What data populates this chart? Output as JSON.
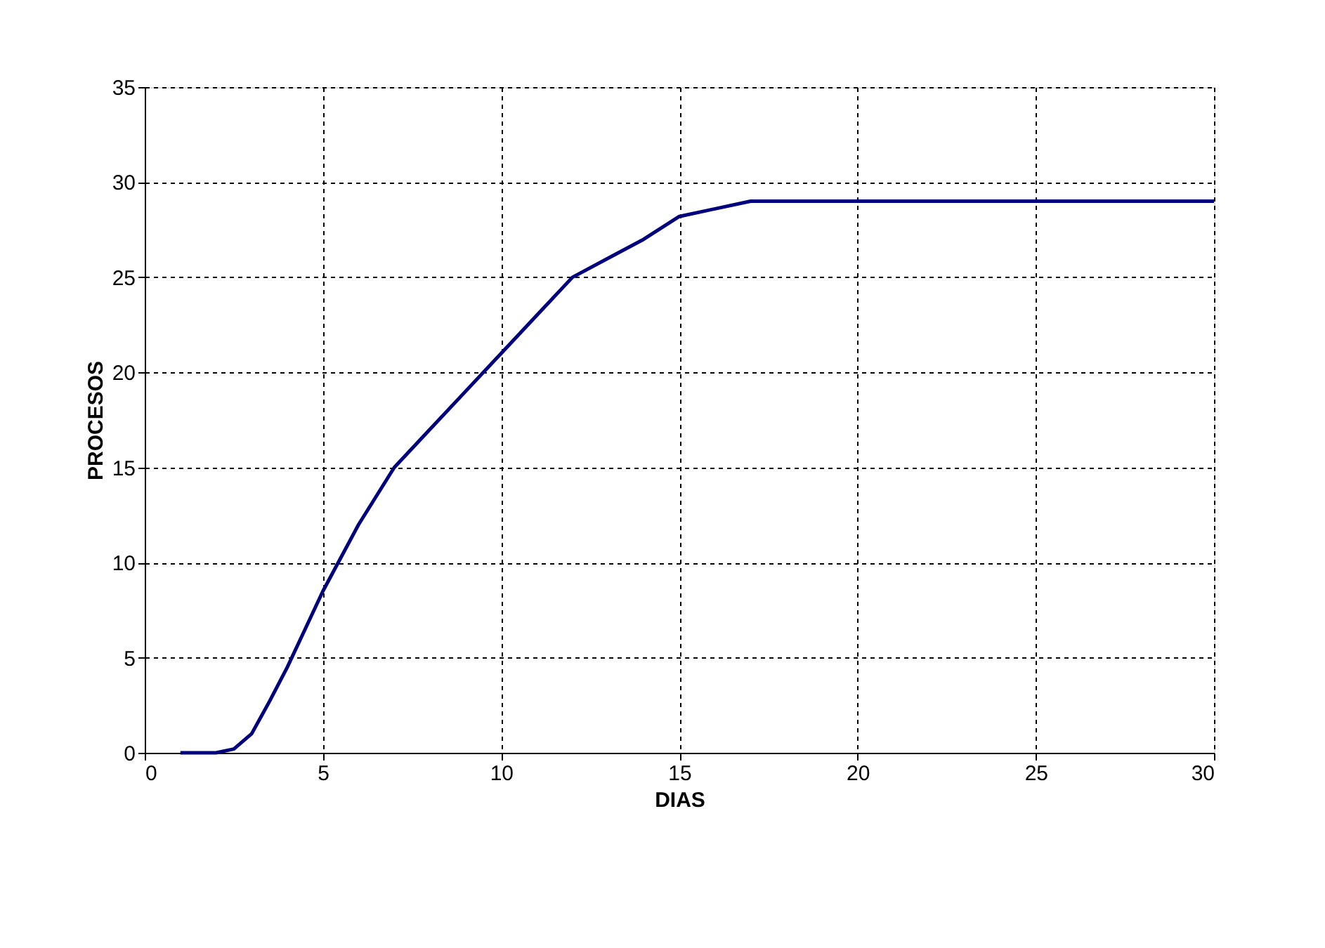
{
  "chart_data": {
    "type": "line",
    "xlabel": "DIAS",
    "ylabel": "PROCESOS",
    "x": [
      1,
      2,
      2.5,
      3,
      3.5,
      4,
      4.5,
      5,
      6,
      7,
      8,
      9,
      10,
      11,
      12,
      13,
      14,
      15,
      16,
      17,
      18,
      20,
      25,
      30
    ],
    "series": [
      {
        "color": "#00007f",
        "values": [
          0,
          0,
          0.2,
          1,
          2.7,
          4.5,
          6.5,
          8.5,
          12,
          15,
          17,
          19,
          21,
          23,
          25,
          26,
          27,
          28.2,
          28.6,
          29,
          29,
          29,
          29,
          29
        ]
      }
    ],
    "xlim": [
      0,
      30
    ],
    "xticks": [
      0,
      5,
      10,
      15,
      20,
      25,
      30
    ],
    "ylim": [
      0,
      35
    ],
    "yticks": [
      0,
      5,
      10,
      15,
      20,
      25,
      30,
      35
    ],
    "grid": true,
    "marker": "none",
    "line_style": "solid"
  }
}
